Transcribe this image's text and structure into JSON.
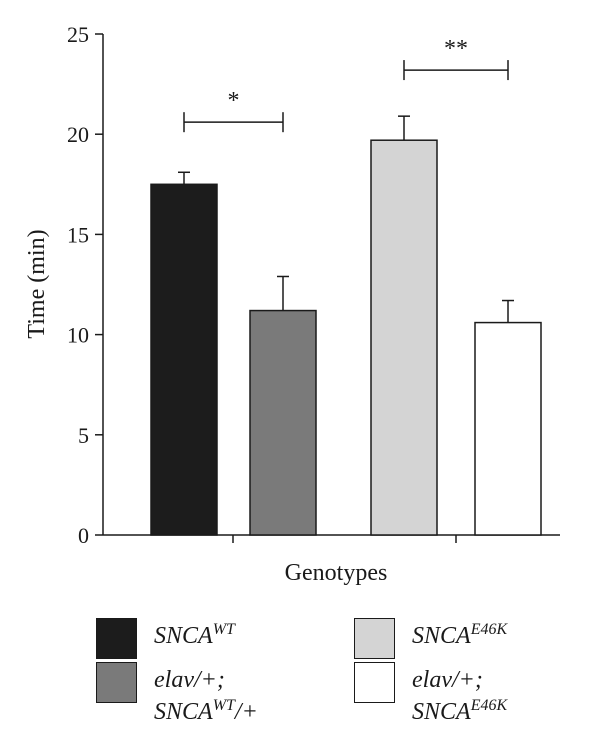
{
  "chart_data": {
    "type": "bar",
    "xlabel": "Genotypes",
    "ylabel": "Time (min)",
    "ylim": [
      0,
      25
    ],
    "yticks": [
      "0",
      "5",
      "10",
      "15",
      "20",
      "25"
    ],
    "grid": false,
    "series": [
      {
        "key": "wt",
        "value": 17.5,
        "error": 0.6,
        "color": "#1c1c1c"
      },
      {
        "key": "elav_wt",
        "value": 11.2,
        "error": 1.7,
        "color": "#7a7a7a"
      },
      {
        "key": "e46k",
        "value": 19.7,
        "error": 1.2,
        "color": "#d4d4d4"
      },
      {
        "key": "elav_e46k",
        "value": 10.6,
        "error": 1.1,
        "color": "#ffffff"
      }
    ],
    "significance": [
      {
        "from": 0,
        "to": 1,
        "label": "*",
        "y": 20.6
      },
      {
        "from": 2,
        "to": 3,
        "label": "**",
        "y": 23.2
      }
    ],
    "legend_position": "bottom",
    "legend": [
      {
        "lines": [
          {
            "base": "SNCA",
            "sup": "WT",
            "suffix": ""
          }
        ],
        "color": "#1c1c1c"
      },
      {
        "lines": [
          {
            "base": "SNCA",
            "sup": "E46K",
            "suffix": ""
          }
        ],
        "color": "#d4d4d4"
      },
      {
        "lines": [
          {
            "base": "elav/+;",
            "sup": "",
            "suffix": ""
          },
          {
            "base": "SNCA",
            "sup": "WT",
            "suffix": "/+"
          }
        ],
        "color": "#7a7a7a"
      },
      {
        "lines": [
          {
            "base": "elav/+;",
            "sup": "",
            "suffix": ""
          },
          {
            "base": "SNCA",
            "sup": "E46K",
            "suffix": ""
          }
        ],
        "color": "#ffffff"
      }
    ]
  }
}
